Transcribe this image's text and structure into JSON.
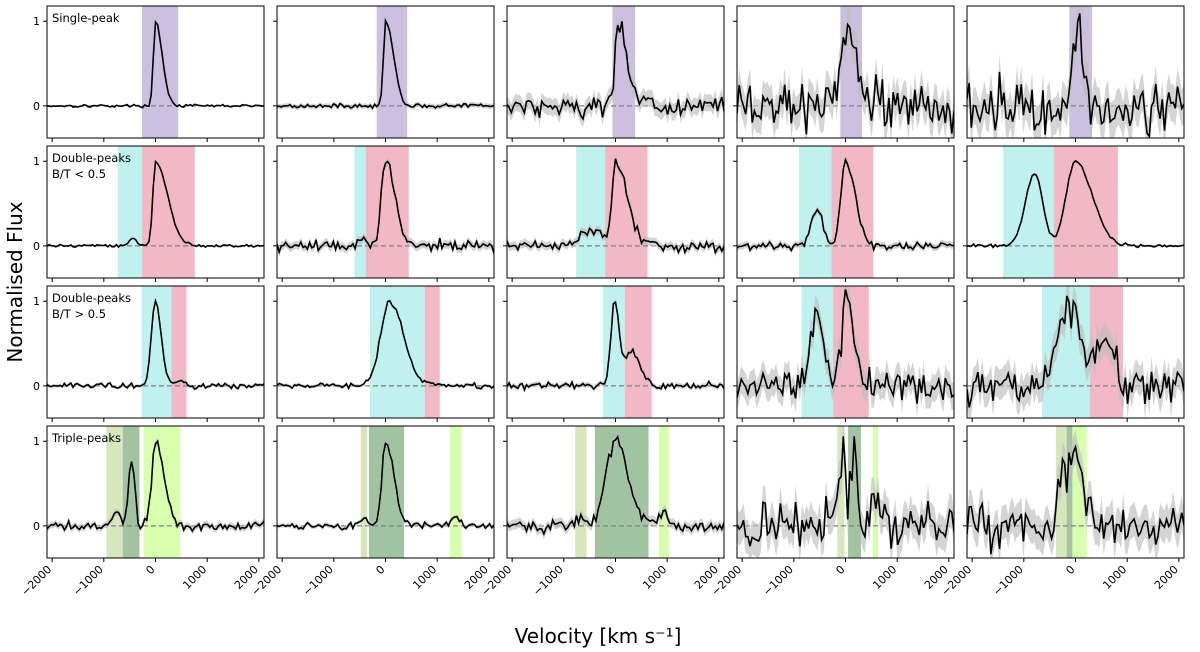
{
  "figure": {
    "ylabel": "Normalised Flux",
    "xlabel": "Velocity [km s⁻¹]"
  },
  "colors": {
    "single": "#9b7fc0",
    "blue": "#7fe3df",
    "red": "#e8728c",
    "green_light": "#a9c86b",
    "green_dark": "#2f7a2f",
    "green_bright": "#b8ff6a",
    "line": "#000000",
    "band": "#bdbdbd",
    "zero": "#808080"
  },
  "chart_data": {
    "type": "line",
    "grid": false,
    "xlim": [
      -2100,
      2100
    ],
    "ylim": [
      -0.38,
      1.18
    ],
    "x_ticks": [
      -2000,
      -1000,
      0,
      1000,
      2000
    ],
    "x_tick_labels": [
      "−2000",
      "−1000",
      "0",
      "1000",
      "2000"
    ],
    "y_ticks": [
      0,
      1
    ],
    "y_tick_labels": [
      "0",
      "1"
    ],
    "row_labels": [
      [
        "Single-peak"
      ],
      [
        "Double-peaks",
        "B/T < 0.5"
      ],
      [
        "Double-peaks",
        "B/T > 0.5"
      ],
      [
        "Triple-peaks"
      ]
    ],
    "panels": [
      {
        "row": 0,
        "col": 0,
        "noise": 0.01,
        "band_width": 0.01,
        "regions": [
          {
            "kind": "single",
            "range": [
              -260,
              440
            ]
          }
        ],
        "components": [
          {
            "center": 0,
            "amp": 1.0,
            "sigma_left": 40,
            "sigma_right": 130
          }
        ]
      },
      {
        "row": 0,
        "col": 1,
        "noise": 0.015,
        "band_width": 0.03,
        "regions": [
          {
            "kind": "single",
            "range": [
              -170,
              420
            ]
          }
        ],
        "components": [
          {
            "center": 0,
            "amp": 1.0,
            "sigma_left": 40,
            "sigma_right": 150
          }
        ]
      },
      {
        "row": 0,
        "col": 2,
        "noise": 0.08,
        "band_width": 0.1,
        "regions": [
          {
            "kind": "single",
            "range": [
              -60,
              380
            ]
          }
        ],
        "components": [
          {
            "center": 30,
            "amp": 0.98,
            "sigma_left": 40,
            "sigma_right": 180
          }
        ]
      },
      {
        "row": 0,
        "col": 3,
        "noise": 0.18,
        "band_width": 0.2,
        "regions": [
          {
            "kind": "single",
            "range": [
              -100,
              320
            ]
          }
        ],
        "components": [
          {
            "center": 0,
            "amp": 1.0,
            "sigma_left": 60,
            "sigma_right": 180
          }
        ]
      },
      {
        "row": 0,
        "col": 4,
        "noise": 0.2,
        "band_width": 0.22,
        "regions": [
          {
            "kind": "single",
            "range": [
              -120,
              320
            ]
          }
        ],
        "components": [
          {
            "center": 0,
            "amp": 1.0,
            "sigma_left": 50,
            "sigma_right": 150
          }
        ]
      },
      {
        "row": 1,
        "col": 0,
        "noise": 0.01,
        "band_width": 0.01,
        "regions": [
          {
            "kind": "blue",
            "range": [
              -730,
              -260
            ]
          },
          {
            "kind": "red",
            "range": [
              -260,
              760
            ]
          }
        ],
        "components": [
          {
            "center": -440,
            "amp": 0.1,
            "sigma_left": 70,
            "sigma_right": 80
          },
          {
            "center": 0,
            "amp": 1.0,
            "sigma_left": 50,
            "sigma_right": 230
          }
        ]
      },
      {
        "row": 1,
        "col": 1,
        "noise": 0.04,
        "band_width": 0.05,
        "regions": [
          {
            "kind": "blue",
            "range": [
              -600,
              -380
            ]
          },
          {
            "kind": "red",
            "range": [
              -380,
              450
            ]
          }
        ],
        "components": [
          {
            "center": -490,
            "amp": 0.12,
            "sigma_left": 50,
            "sigma_right": 70
          },
          {
            "center": 0,
            "amp": 1.0,
            "sigma_left": 80,
            "sigma_right": 180
          }
        ]
      },
      {
        "row": 1,
        "col": 2,
        "noise": 0.04,
        "band_width": 0.05,
        "regions": [
          {
            "kind": "blue",
            "range": [
              -760,
              -200
            ]
          },
          {
            "kind": "red",
            "range": [
              -200,
              620
            ]
          }
        ],
        "components": [
          {
            "center": -420,
            "amp": 0.17,
            "sigma_left": 240,
            "sigma_right": 200
          },
          {
            "center": 0,
            "amp": 0.98,
            "sigma_left": 60,
            "sigma_right": 220
          }
        ]
      },
      {
        "row": 1,
        "col": 3,
        "noise": 0.03,
        "band_width": 0.04,
        "regions": [
          {
            "kind": "blue",
            "range": [
              -900,
              -270
            ]
          },
          {
            "kind": "red",
            "range": [
              -270,
              540
            ]
          }
        ],
        "components": [
          {
            "center": -560,
            "amp": 0.42,
            "sigma_left": 110,
            "sigma_right": 120
          },
          {
            "center": 0,
            "amp": 1.0,
            "sigma_left": 90,
            "sigma_right": 190
          }
        ]
      },
      {
        "row": 1,
        "col": 4,
        "noise": 0.012,
        "band_width": 0.015,
        "regions": [
          {
            "kind": "blue",
            "range": [
              -1400,
              -420
            ]
          },
          {
            "kind": "red",
            "range": [
              -420,
              820
            ]
          }
        ],
        "components": [
          {
            "center": -790,
            "amp": 0.86,
            "sigma_left": 180,
            "sigma_right": 150
          },
          {
            "center": 0,
            "amp": 1.0,
            "sigma_left": 180,
            "sigma_right": 320
          }
        ]
      },
      {
        "row": 2,
        "col": 0,
        "noise": 0.02,
        "band_width": 0.02,
        "regions": [
          {
            "kind": "blue",
            "range": [
              -270,
              310
            ]
          },
          {
            "kind": "red",
            "range": [
              310,
              600
            ]
          }
        ],
        "components": [
          {
            "center": 0,
            "amp": 1.0,
            "sigma_left": 80,
            "sigma_right": 110
          },
          {
            "center": 440,
            "amp": 0.07,
            "sigma_left": 80,
            "sigma_right": 80
          }
        ]
      },
      {
        "row": 2,
        "col": 1,
        "noise": 0.02,
        "band_width": 0.02,
        "regions": [
          {
            "kind": "blue",
            "range": [
              -300,
              760
            ]
          },
          {
            "kind": "red",
            "range": [
              760,
              1050
            ]
          }
        ],
        "components": [
          {
            "center": 90,
            "amp": 1.0,
            "sigma_left": 180,
            "sigma_right": 260
          },
          {
            "center": 880,
            "amp": 0.04,
            "sigma_left": 100,
            "sigma_right": 100
          }
        ]
      },
      {
        "row": 2,
        "col": 2,
        "noise": 0.025,
        "band_width": 0.03,
        "regions": [
          {
            "kind": "blue",
            "range": [
              -240,
              180
            ]
          },
          {
            "kind": "red",
            "range": [
              180,
              700
            ]
          }
        ],
        "components": [
          {
            "center": -20,
            "amp": 1.0,
            "sigma_left": 70,
            "sigma_right": 90
          },
          {
            "center": 300,
            "amp": 0.42,
            "sigma_left": 120,
            "sigma_right": 170
          }
        ]
      },
      {
        "row": 2,
        "col": 3,
        "noise": 0.12,
        "band_width": 0.16,
        "regions": [
          {
            "kind": "blue",
            "range": [
              -850,
              -240
            ]
          },
          {
            "kind": "red",
            "range": [
              -240,
              450
            ]
          }
        ],
        "components": [
          {
            "center": -560,
            "amp": 0.9,
            "sigma_left": 120,
            "sigma_right": 130
          },
          {
            "center": 0,
            "amp": 1.0,
            "sigma_left": 80,
            "sigma_right": 170
          }
        ]
      },
      {
        "row": 2,
        "col": 4,
        "noise": 0.14,
        "band_width": 0.18,
        "regions": [
          {
            "kind": "blue",
            "range": [
              -650,
              280
            ]
          },
          {
            "kind": "red",
            "range": [
              280,
              920
            ]
          }
        ],
        "components": [
          {
            "center": -100,
            "amp": 1.0,
            "sigma_left": 260,
            "sigma_right": 160
          },
          {
            "center": 480,
            "amp": 0.62,
            "sigma_left": 140,
            "sigma_right": 200
          }
        ]
      },
      {
        "row": 3,
        "col": 0,
        "noise": 0.035,
        "band_width": 0.04,
        "regions": [
          {
            "kind": "green_light",
            "range": [
              -950,
              -650
            ]
          },
          {
            "kind": "green_dark",
            "range": [
              -640,
              -310
            ]
          },
          {
            "kind": "green_bright",
            "range": [
              -230,
              480
            ]
          }
        ],
        "components": [
          {
            "center": -760,
            "amp": 0.18,
            "sigma_left": 60,
            "sigma_right": 60
          },
          {
            "center": -460,
            "amp": 0.78,
            "sigma_left": 60,
            "sigma_right": 60
          },
          {
            "center": 0,
            "amp": 1.0,
            "sigma_left": 70,
            "sigma_right": 160
          }
        ]
      },
      {
        "row": 3,
        "col": 1,
        "noise": 0.025,
        "band_width": 0.025,
        "regions": [
          {
            "kind": "green_light",
            "range": [
              -480,
              -360
            ]
          },
          {
            "kind": "green_dark",
            "range": [
              -320,
              360
            ]
          },
          {
            "kind": "green_bright",
            "range": [
              1250,
              1470
            ]
          }
        ],
        "components": [
          {
            "center": -420,
            "amp": 0.1,
            "sigma_left": 60,
            "sigma_right": 60
          },
          {
            "center": 0,
            "amp": 1.0,
            "sigma_left": 70,
            "sigma_right": 160
          },
          {
            "center": 1350,
            "amp": 0.1,
            "sigma_left": 70,
            "sigma_right": 70
          }
        ]
      },
      {
        "row": 3,
        "col": 2,
        "noise": 0.05,
        "band_width": 0.06,
        "regions": [
          {
            "kind": "green_light",
            "range": [
              -780,
              -560
            ]
          },
          {
            "kind": "green_dark",
            "range": [
              -400,
              640
            ]
          },
          {
            "kind": "green_bright",
            "range": [
              840,
              1030
            ]
          }
        ],
        "components": [
          {
            "center": -670,
            "amp": 0.12,
            "sigma_left": 80,
            "sigma_right": 80
          },
          {
            "center": 0,
            "amp": 1.0,
            "sigma_left": 180,
            "sigma_right": 240
          },
          {
            "center": 930,
            "amp": 0.18,
            "sigma_left": 70,
            "sigma_right": 70
          }
        ]
      },
      {
        "row": 3,
        "col": 3,
        "noise": 0.18,
        "band_width": 0.2,
        "regions": [
          {
            "kind": "green_light",
            "range": [
              -160,
              -20
            ]
          },
          {
            "kind": "green_dark",
            "range": [
              50,
              300
            ]
          },
          {
            "kind": "green_bright",
            "range": [
              530,
              630
            ]
          }
        ],
        "components": [
          {
            "center": -60,
            "amp": 1.0,
            "sigma_left": 60,
            "sigma_right": 60
          },
          {
            "center": 160,
            "amp": 0.9,
            "sigma_left": 60,
            "sigma_right": 70
          },
          {
            "center": 580,
            "amp": 0.4,
            "sigma_left": 70,
            "sigma_right": 70
          }
        ]
      },
      {
        "row": 3,
        "col": 4,
        "noise": 0.16,
        "band_width": 0.2,
        "regions": [
          {
            "kind": "green_light",
            "range": [
              -380,
              -170
            ]
          },
          {
            "kind": "green_dark",
            "range": [
              -170,
              -60
            ]
          },
          {
            "kind": "green_bright",
            "range": [
              -60,
              220
            ]
          }
        ],
        "components": [
          {
            "center": -270,
            "amp": 0.65,
            "sigma_left": 70,
            "sigma_right": 70
          },
          {
            "center": -110,
            "amp": 0.72,
            "sigma_left": 50,
            "sigma_right": 50
          },
          {
            "center": 30,
            "amp": 1.0,
            "sigma_left": 60,
            "sigma_right": 110
          }
        ]
      }
    ]
  }
}
